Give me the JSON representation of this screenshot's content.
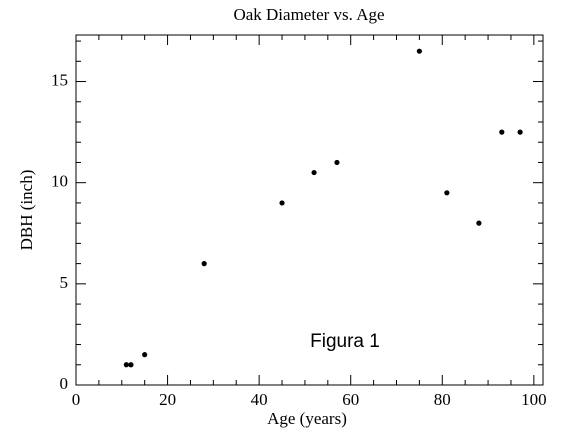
{
  "chart_data": {
    "type": "scatter",
    "title": "Oak Diameter vs. Age",
    "xlabel": "Age (years)",
    "ylabel": "DBH (inch)",
    "annotation": "Figura 1",
    "x": [
      11,
      12,
      15,
      28,
      45,
      52,
      57,
      75,
      81,
      88,
      93,
      97
    ],
    "values": [
      1,
      1,
      1.5,
      6,
      9,
      10.5,
      11,
      16.5,
      9.5,
      8,
      12.5,
      12.5
    ],
    "color": "#000000",
    "xlim": [
      0,
      102
    ],
    "ylim": [
      0,
      17.3
    ],
    "xticks": [
      0,
      20,
      40,
      60,
      80,
      100
    ],
    "yticks": [
      0,
      5,
      10,
      15
    ],
    "xminorticks": [
      5,
      10,
      15,
      25,
      30,
      35,
      45,
      50,
      55,
      65,
      70,
      75,
      85,
      90,
      95
    ],
    "yminorticks": [
      1,
      2,
      3,
      4,
      6,
      7,
      8,
      9,
      11,
      12,
      13,
      14,
      16,
      17
    ]
  }
}
